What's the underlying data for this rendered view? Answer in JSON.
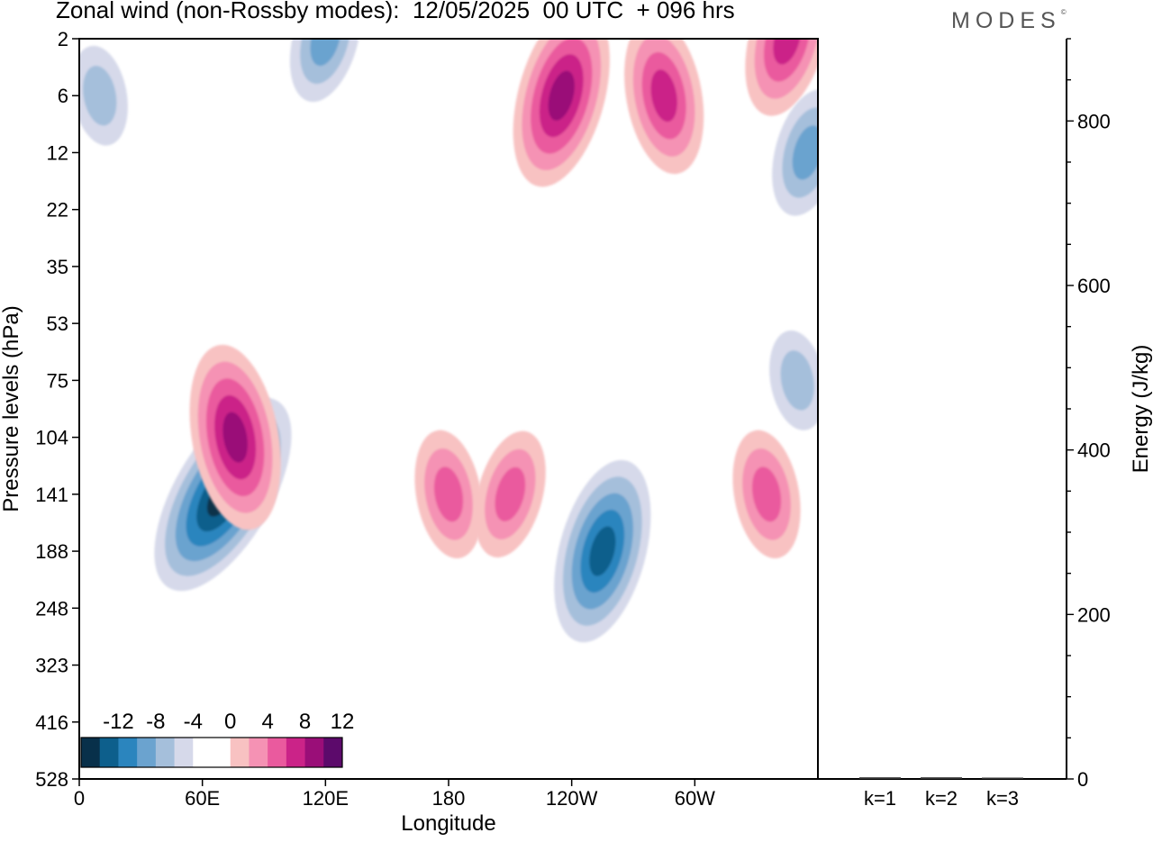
{
  "header": {
    "title": "Zonal wind (non-Rossby modes):  12/05/2025  00 UTC  + 096 hrs",
    "brand": "MODES",
    "brand_mark": "©"
  },
  "chart_data": [
    {
      "type": "heatmap",
      "title": "Zonal wind (non-Rossby modes):  12/05/2025  00 UTC  + 096 hrs",
      "xlabel": "Longitude",
      "ylabel": "Pressure levels (hPa)",
      "x_ticks": [
        "0",
        "60E",
        "120E",
        "180",
        "120W",
        "60W"
      ],
      "x_tick_degrees": [
        0,
        60,
        120,
        180,
        240,
        300
      ],
      "x_range_degrees": [
        0,
        360
      ],
      "y_ticks": [
        "2",
        "6",
        "12",
        "22",
        "35",
        "53",
        "75",
        "104",
        "141",
        "188",
        "248",
        "323",
        "416",
        "528"
      ],
      "y_direction": "top-to-bottom",
      "colorbar": {
        "tick_labels": [
          "-12",
          "-8",
          "-4",
          "0",
          "4",
          "8",
          "12"
        ],
        "colors": [
          "#08304a",
          "#0d5f8c",
          "#2b85be",
          "#6ba3cf",
          "#a5bfdb",
          "#d6d9ea",
          "#ffffff",
          "#ffffff",
          "#f8c2c2",
          "#f592b4",
          "#ea5a9e",
          "#cb2388",
          "#9a0e78",
          "#5c0a6b"
        ],
        "placement": "bottom-left"
      },
      "features": [
        {
          "lon": 70,
          "level": "141",
          "value": -13
        },
        {
          "lon": 255,
          "level": "188",
          "value": -10
        },
        {
          "lon": 76,
          "level": "104",
          "value": 10
        },
        {
          "lon": 235,
          "level": "6",
          "value": 10
        },
        {
          "lon": 285,
          "level": "6",
          "value": 9
        },
        {
          "lon": 345,
          "level": "2",
          "value": 9
        },
        {
          "lon": 180,
          "level": "141",
          "value": 7
        },
        {
          "lon": 210,
          "level": "141",
          "value": 7
        },
        {
          "lon": 335,
          "level": "141",
          "value": 7
        },
        {
          "lon": 120,
          "level": "2",
          "value": -7
        },
        {
          "lon": 10,
          "level": "6",
          "value": -5
        },
        {
          "lon": 355,
          "level": "12",
          "value": -6
        },
        {
          "lon": 350,
          "level": "75",
          "value": -5
        }
      ]
    },
    {
      "type": "bar",
      "categories": [
        "k=1",
        "k=2",
        "k=3"
      ],
      "values": [
        2,
        2,
        1
      ],
      "ylabel": "Energy (J/kg)",
      "y_ticks": [
        "0",
        "200",
        "400",
        "600",
        "800"
      ],
      "ylim": [
        0,
        900
      ]
    }
  ]
}
